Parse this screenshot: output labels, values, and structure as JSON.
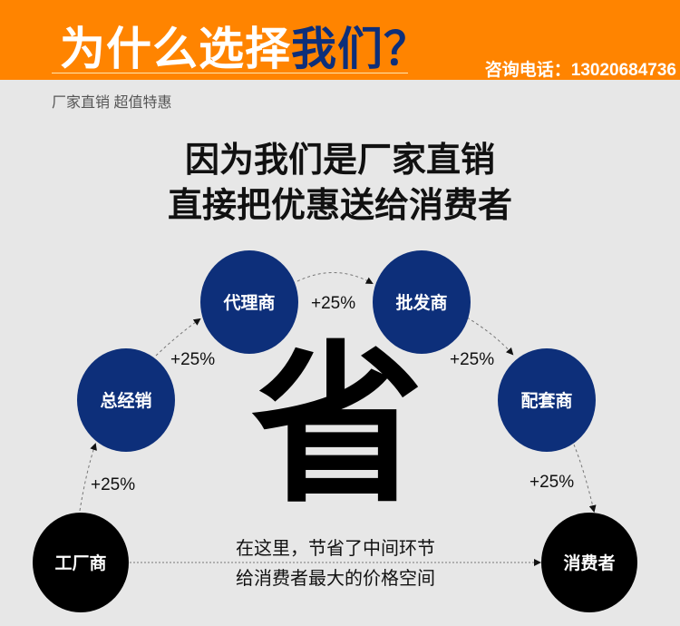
{
  "header": {
    "title_part1": "为什么选择",
    "title_part2": "我们？",
    "phone": "咨询电话：13020684736",
    "bg_color": "#ff8400",
    "accent_color": "#0d2f7a"
  },
  "subtitle": "厂家直销 超值特惠",
  "headline": [
    "因为我们是厂家直销",
    "直接把优惠送给消费者"
  ],
  "flow": {
    "nodes": [
      "工厂商",
      "总经销",
      "代理商",
      "批发商",
      "配套商",
      "消费者"
    ],
    "markups": [
      "+25%",
      "+25%",
      "+25%",
      "+25%",
      "+25%"
    ],
    "center_char": "省",
    "note": [
      "在这里，节省了中间环节",
      "给消费者最大的价格空间"
    ],
    "node_color": "#0d2f7a",
    "end_color": "#000000"
  }
}
